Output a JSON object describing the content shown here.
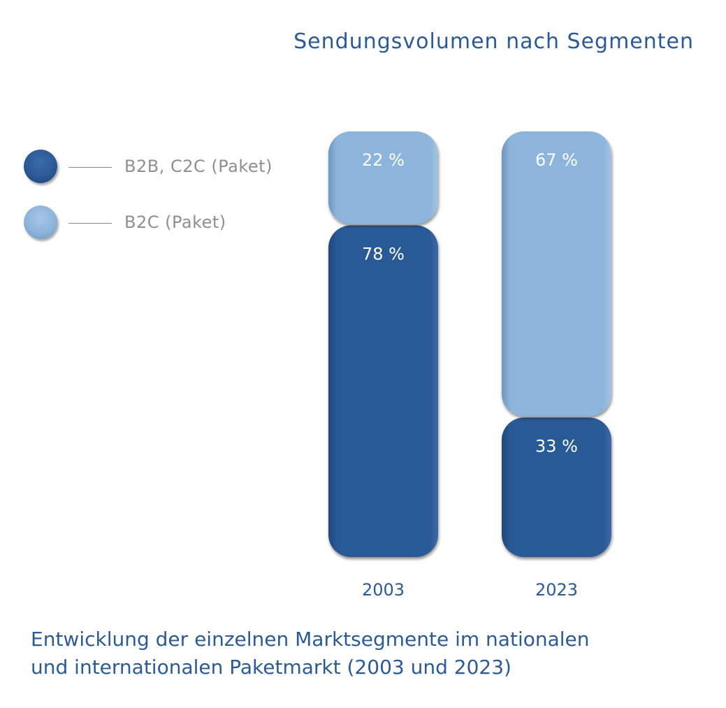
{
  "chart_data": {
    "type": "bar",
    "stacked": true,
    "percent": true,
    "title": "Sendungsvolumen nach Segmenten",
    "categories": [
      "2003",
      "2023"
    ],
    "series": [
      {
        "name": "B2B, C2C (Paket)",
        "values": [
          78,
          33
        ],
        "value_labels": [
          "78 %",
          "33 %"
        ],
        "color": "#2b5a96"
      },
      {
        "name": "B2C (Paket)",
        "values": [
          22,
          67
        ],
        "value_labels": [
          "22 %",
          "67 %"
        ],
        "color": "#8db4db"
      }
    ],
    "ylim": [
      0,
      100
    ],
    "grid": false,
    "legend_position": "left",
    "caption": "Entwicklung der einzelnen Marktsegmente  im nationalen\nund internationalen Paketmarkt (2003 und 2023)"
  },
  "colors": {
    "title": "#2b5a96",
    "legend_text": "#8f8f8f",
    "bar_label": "#ffffff",
    "category_label": "#2b5a96"
  }
}
